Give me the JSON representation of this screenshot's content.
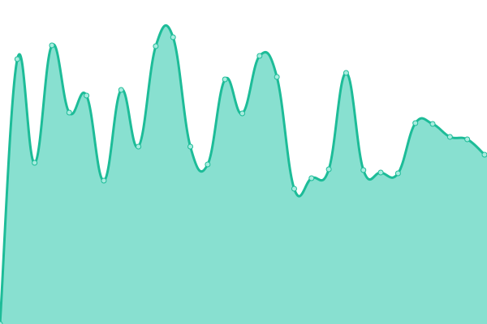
{
  "chart_data": {
    "type": "area",
    "title": "",
    "xlabel": "",
    "ylabel": "",
    "x": [
      0,
      1,
      2,
      3,
      4,
      5,
      6,
      7,
      8,
      9,
      10,
      11,
      12,
      13,
      14,
      15,
      16,
      17,
      18,
      19,
      20,
      21,
      22,
      23,
      24,
      25,
      26,
      27,
      28
    ],
    "values": [
      0,
      327,
      199,
      344,
      261,
      282,
      177,
      289,
      219,
      343,
      354,
      219,
      197,
      302,
      260,
      331,
      305,
      167,
      180,
      191,
      310,
      190,
      187,
      186,
      248,
      247,
      231,
      228,
      209
    ],
    "ylim": [
      0,
      400
    ],
    "grid": false,
    "axes_visible": false,
    "smooth": true,
    "colors": {
      "line": "#1dbc98",
      "fill": "#88e0d0",
      "point_fill": "#a8ecdf",
      "point_stroke": "#1dbc98"
    }
  }
}
